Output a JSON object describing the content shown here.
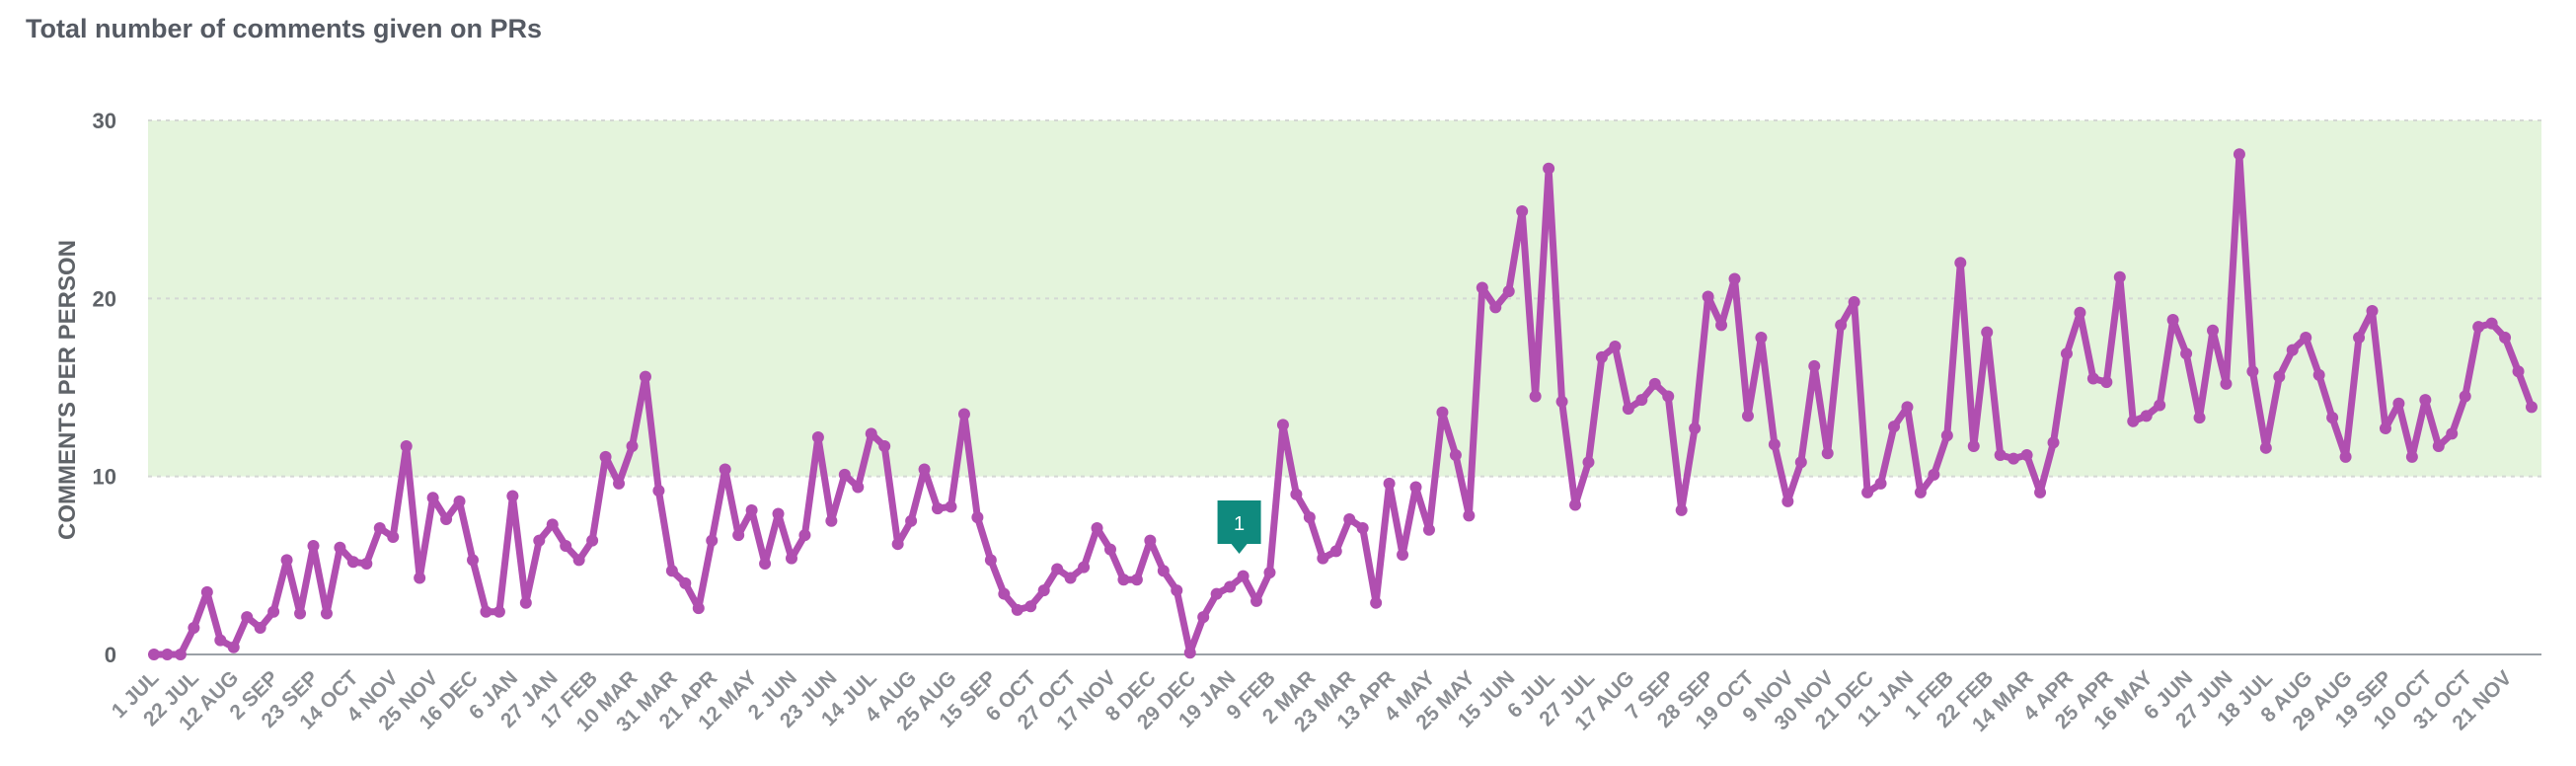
{
  "title": "Total number of comments given on PRs",
  "chart_data": {
    "type": "line",
    "title": "Total number of comments given on PRs",
    "ylabel": "COMMENTS PER PERSON",
    "xlabel": "",
    "ylim": [
      0,
      30
    ],
    "yticks": [
      0,
      10,
      20,
      30
    ],
    "grid": true,
    "target_band": {
      "from": 10,
      "to": 30,
      "color": "#e4f4dc"
    },
    "line_color": "#b04fb0",
    "x_tick_labels": [
      "1 JUL",
      "22 JUL",
      "12 AUG",
      "2 SEP",
      "23 SEP",
      "14 OCT",
      "4 NOV",
      "25 NOV",
      "16 DEC",
      "6 JAN",
      "27 JAN",
      "17 FEB",
      "10 MAR",
      "31 MAR",
      "21 APR",
      "12 MAY",
      "2 JUN",
      "23 JUN",
      "14 JUL",
      "4 AUG",
      "25 AUG",
      "15 SEP",
      "6 OCT",
      "27 OCT",
      "17 NOV",
      "8 DEC",
      "29 DEC",
      "19 JAN",
      "9 FEB",
      "2 MAR",
      "23 MAR",
      "13 APR",
      "4 MAY",
      "25 MAY",
      "15 JUN",
      "6 JUL",
      "27 JUL",
      "17 AUG",
      "7 SEP",
      "28 SEP",
      "19 OCT",
      "9 NOV",
      "30 NOV",
      "21 DEC",
      "11 JAN",
      "1 FEB",
      "22 FEB",
      "14 MAR",
      "4 APR",
      "25 APR",
      "16 MAY",
      "6 JUN",
      "27 JUN",
      "18 JUL",
      "8 AUG",
      "29 AUG",
      "19 SEP",
      "10 OCT",
      "31 OCT",
      "21 NOV"
    ],
    "series": [
      {
        "values": [
          0,
          0,
          0,
          1.5,
          3.5,
          0.8,
          0.4,
          2.1,
          1.5,
          2.4,
          5.3,
          2.3,
          6.1,
          2.3,
          6.0,
          5.2,
          5.1,
          7.1,
          6.6,
          11.7,
          4.3,
          8.8,
          7.6,
          8.6,
          5.3,
          2.4,
          2.4,
          8.9,
          2.9,
          6.4,
          7.3,
          6.1,
          5.3,
          6.4,
          11.1,
          9.6,
          11.7,
          15.6,
          9.2,
          4.7,
          4.0,
          2.6,
          6.4,
          10.4,
          6.7,
          8.1,
          5.1,
          7.9,
          5.4,
          6.7,
          12.2,
          7.5,
          10.1,
          9.4,
          12.4,
          11.7,
          6.2,
          7.5,
          10.4,
          8.2,
          8.3,
          13.5,
          7.7,
          5.3,
          3.4,
          2.5,
          2.7,
          3.6,
          4.8,
          4.3,
          4.9,
          7.1,
          5.9,
          4.2,
          4.2,
          6.4,
          4.7,
          3.6,
          0.1,
          2.1,
          3.4,
          3.8,
          4.4,
          3.0,
          4.6,
          12.9,
          9.0,
          7.7,
          5.4,
          5.8,
          7.6,
          7.1,
          2.9,
          9.6,
          5.6,
          9.4,
          7.0,
          13.6,
          11.2,
          7.8,
          20.6,
          19.5,
          20.4,
          24.9,
          14.5,
          27.3,
          14.2,
          8.4,
          10.8,
          16.7,
          17.3,
          13.8,
          14.3,
          15.2,
          14.5,
          8.1,
          12.7,
          20.1,
          18.5,
          21.1,
          13.4,
          17.8,
          11.8,
          8.6,
          10.8,
          16.2,
          11.3,
          18.5,
          19.8,
          9.1,
          9.6,
          12.8,
          13.9,
          9.1,
          10.1,
          12.3,
          22.0,
          11.7,
          18.1,
          11.2,
          11.0,
          11.2,
          9.1,
          11.9,
          16.9,
          19.2,
          15.5,
          15.3,
          21.2,
          13.1,
          13.4,
          14.0,
          18.8,
          16.9,
          13.3,
          18.2,
          15.2,
          28.1,
          15.9,
          11.6,
          15.6,
          17.1,
          17.8,
          15.7,
          13.3,
          11.1,
          17.8,
          19.3,
          12.7,
          14.1,
          11.1,
          14.3,
          11.7,
          12.4,
          14.5,
          18.4,
          18.6,
          17.8,
          15.9,
          13.9
        ]
      }
    ],
    "annotations": [
      {
        "label": "1",
        "index": 82,
        "color": "#0f8a7e"
      }
    ]
  }
}
